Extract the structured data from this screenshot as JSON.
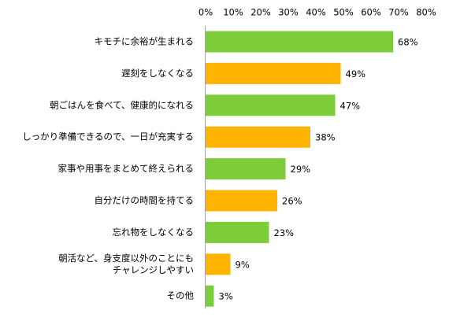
{
  "chart_data": {
    "type": "bar",
    "orientation": "horizontal",
    "title": "",
    "xlabel": "",
    "ylabel": "",
    "xlim": [
      0,
      80
    ],
    "tick_values": [
      0,
      10,
      20,
      30,
      40,
      50,
      60,
      70,
      80
    ],
    "tick_labels": [
      "0%",
      "10%",
      "20%",
      "30%",
      "40%",
      "50%",
      "60%",
      "70%",
      "80%"
    ],
    "tick_position": "top",
    "grid": false,
    "legend": "none",
    "colors": {
      "green": "#7dcd3a",
      "orange": "#ffb400",
      "axis": "#a6a6a6"
    },
    "bars": [
      {
        "label": [
          "キモチに余裕が生まれる"
        ],
        "value": 68,
        "value_label": "68%",
        "color": "green"
      },
      {
        "label": [
          "遅刻をしなくなる"
        ],
        "value": 49,
        "value_label": "49%",
        "color": "orange"
      },
      {
        "label": [
          "朝ごはんを食べて、健康的になれる"
        ],
        "value": 47,
        "value_label": "47%",
        "color": "green"
      },
      {
        "label": [
          "しっかり準備できるので、一日が充実する"
        ],
        "value": 38,
        "value_label": "38%",
        "color": "orange"
      },
      {
        "label": [
          "家事や用事をまとめて終えられる"
        ],
        "value": 29,
        "value_label": "29%",
        "color": "green"
      },
      {
        "label": [
          "自分だけの時間を持てる"
        ],
        "value": 26,
        "value_label": "26%",
        "color": "orange"
      },
      {
        "label": [
          "忘れ物をしなくなる"
        ],
        "value": 23,
        "value_label": "23%",
        "color": "green"
      },
      {
        "label": [
          "朝活など、身支度以外のことにも",
          "チャレンジしやすい"
        ],
        "value": 9,
        "value_label": "9%",
        "color": "orange"
      },
      {
        "label": [
          "その他"
        ],
        "value": 3,
        "value_label": "3%",
        "color": "green"
      }
    ]
  }
}
